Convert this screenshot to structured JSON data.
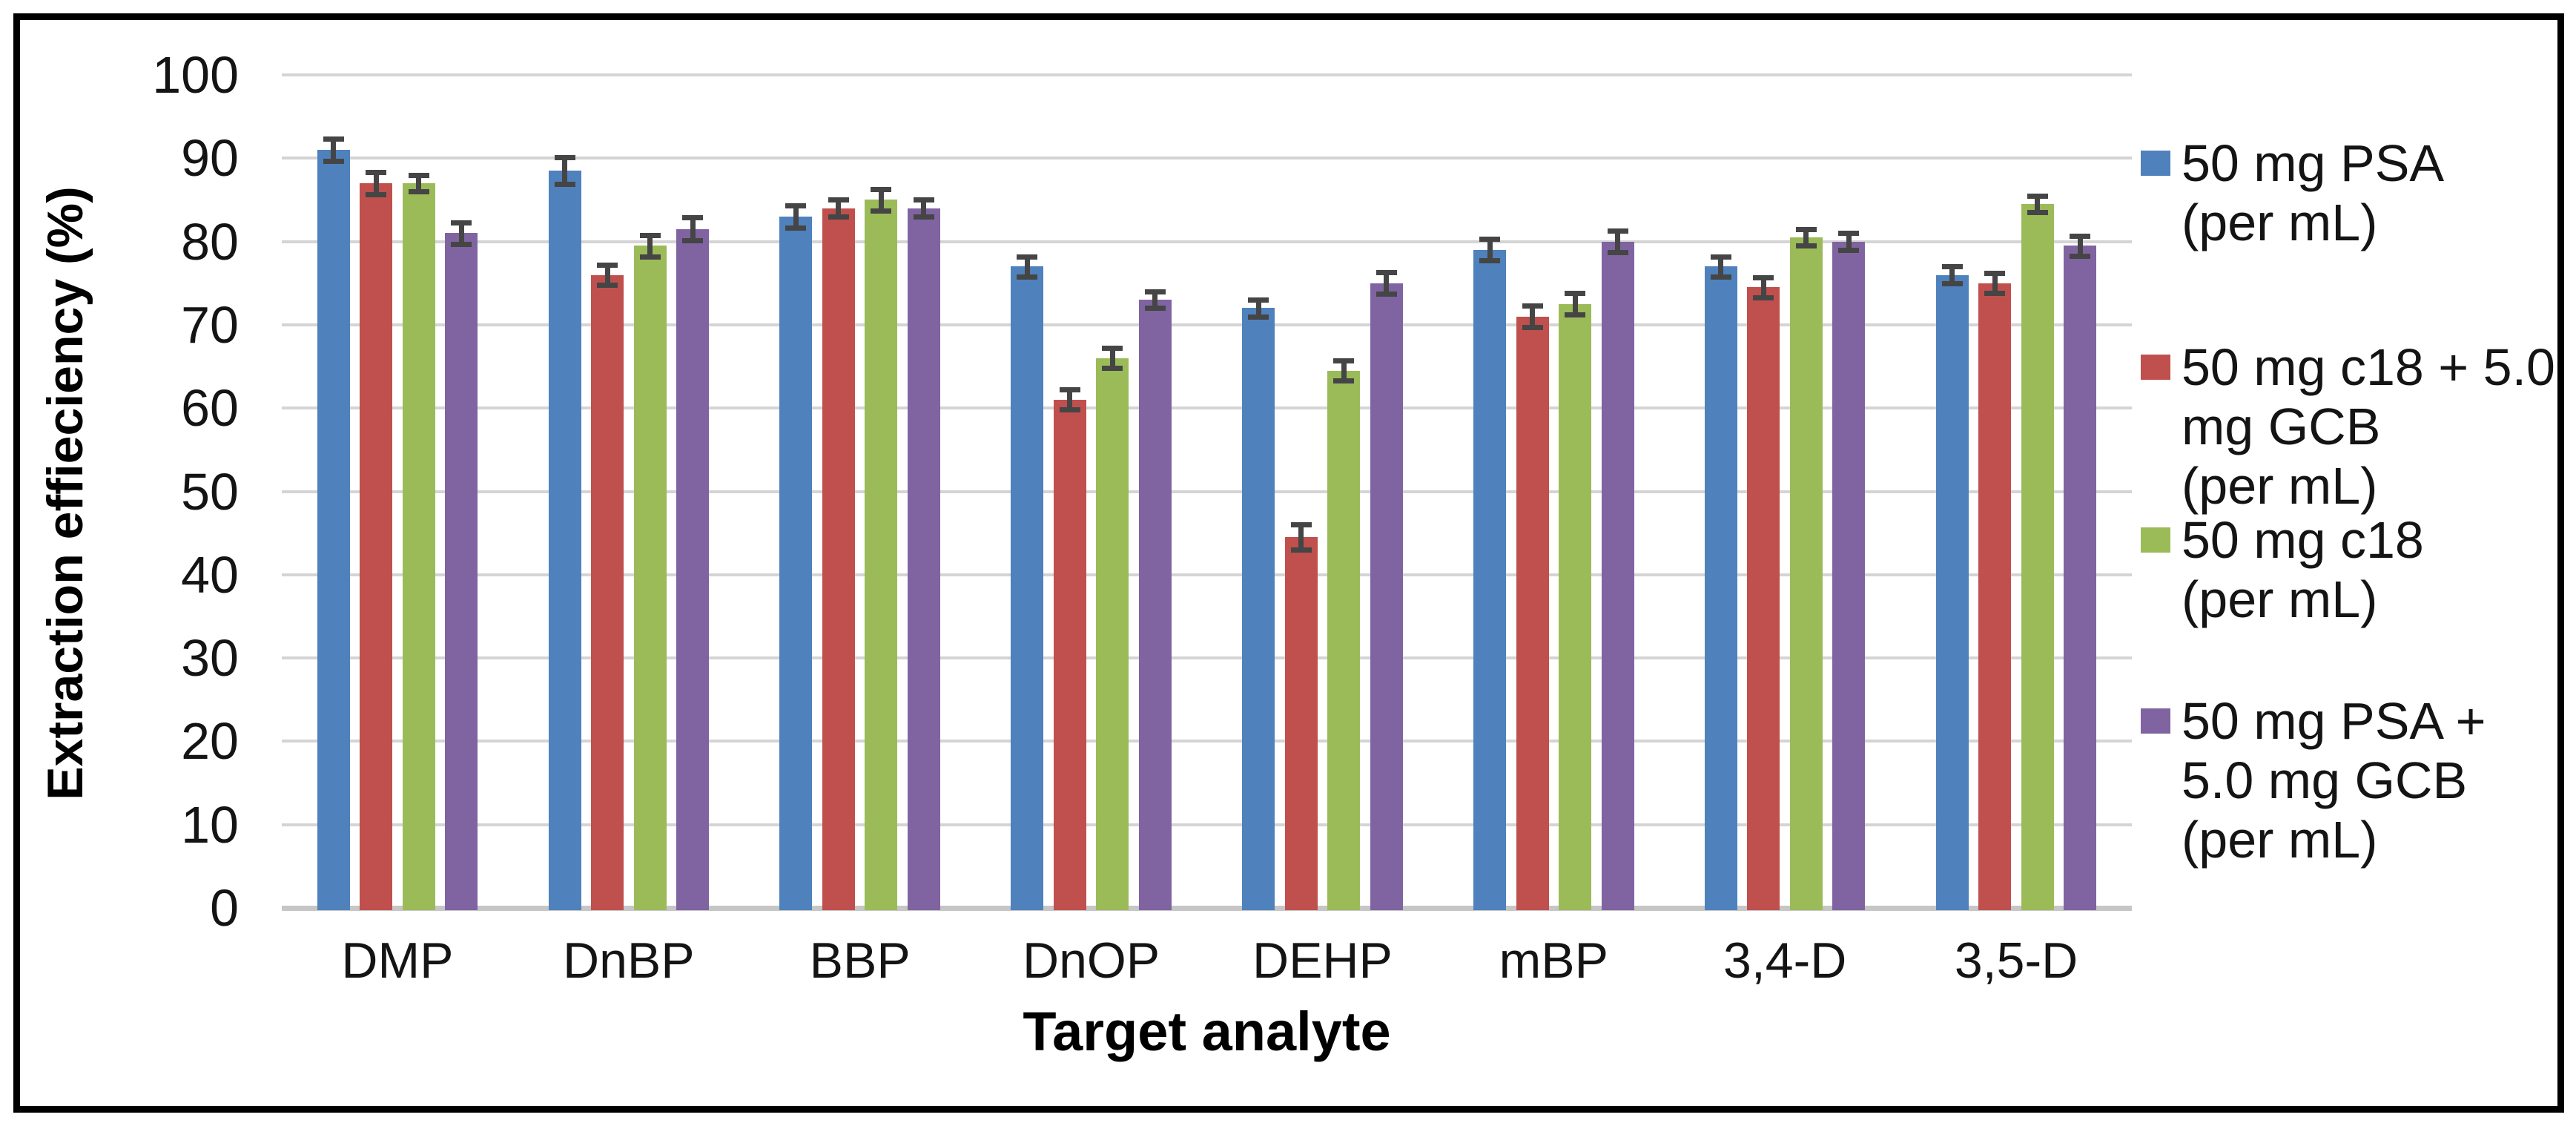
{
  "chart_data": {
    "type": "bar",
    "xlabel": "Target analyte",
    "ylabel": "Extraction effieciency (%)",
    "ylim": [
      0,
      100
    ],
    "yticks": [
      0,
      10,
      20,
      30,
      40,
      50,
      60,
      70,
      80,
      90,
      100
    ],
    "grid": true,
    "legend_position": "right",
    "error_bars": true,
    "categories": [
      "DMP",
      "DnBP",
      "BBP",
      "DnOP",
      "DEHP",
      "mBP",
      "3,4-D",
      "3,5-D"
    ],
    "series": [
      {
        "name": "50 mg PSA (per mL)",
        "legend_lines": [
          "50 mg PSA",
          "(per mL)"
        ],
        "color": "#4F81BD",
        "values": [
          91,
          88.5,
          83,
          77,
          72,
          79,
          77,
          76
        ],
        "errors": [
          1.3,
          1.6,
          1.3,
          1.2,
          1.0,
          1.3,
          1.2,
          1.0
        ]
      },
      {
        "name": "50 mg c18 + 5.0 mg GCB (per mL)",
        "legend_lines": [
          "50 mg c18 + 5.0",
          "mg GCB",
          "(per mL)"
        ],
        "color": "#C0504D",
        "values": [
          87,
          76,
          84,
          61,
          44.5,
          71,
          74.5,
          75
        ],
        "errors": [
          1.3,
          1.2,
          1.0,
          1.2,
          1.5,
          1.3,
          1.2,
          1.2
        ]
      },
      {
        "name": "50 mg c18 (per mL)",
        "legend_lines": [
          "50 mg c18",
          "(per mL)"
        ],
        "color": "#9BBB59",
        "values": [
          87,
          79.5,
          85,
          66,
          64.5,
          72.5,
          80.5,
          84.5
        ],
        "errors": [
          1.0,
          1.3,
          1.3,
          1.2,
          1.2,
          1.3,
          1.0,
          1.0
        ]
      },
      {
        "name": "50 mg PSA + 5.0 mg GCB (per mL)",
        "legend_lines": [
          "50 mg PSA +",
          "5.0 mg GCB",
          "(per mL)"
        ],
        "color": "#8064A2",
        "values": [
          81,
          81.5,
          84,
          73,
          75,
          80,
          80,
          79.5
        ],
        "errors": [
          1.3,
          1.4,
          1.0,
          1.0,
          1.3,
          1.3,
          1.0,
          1.2
        ]
      }
    ],
    "colors": {
      "gridline": "#D4D4D4",
      "baseline": "#C6C6C6",
      "error_bar": "#454545",
      "text": "#141414",
      "frame_border": "#000000",
      "background": "#FFFFFF"
    }
  }
}
